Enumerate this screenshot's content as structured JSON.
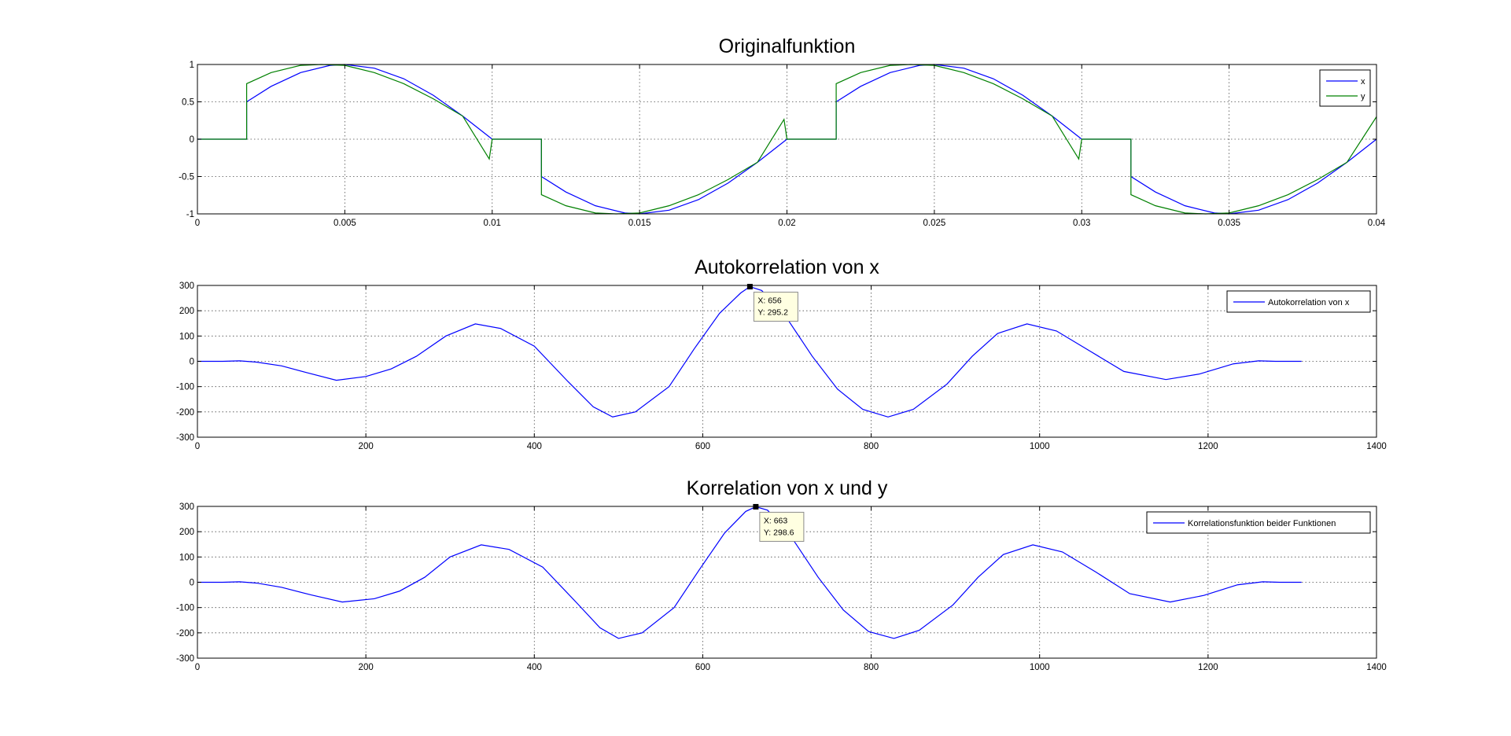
{
  "chart_data": [
    {
      "type": "line",
      "title": "Originalfunktion",
      "xlim": [
        0,
        0.04
      ],
      "ylim": [
        -1,
        1
      ],
      "xticks": [
        0,
        0.005,
        0.01,
        0.015,
        0.02,
        0.025,
        0.03,
        0.035,
        0.04
      ],
      "xtick_labels": [
        "0",
        "0.005",
        "0.01",
        "0.015",
        "0.02",
        "0.025",
        "0.03",
        "0.035",
        "0.04"
      ],
      "yticks": [
        -1,
        -0.5,
        0,
        0.5,
        1
      ],
      "ytick_labels": [
        "-1",
        "-0.5",
        "0",
        "0.5",
        "1"
      ],
      "grid": true,
      "legend_position": "top-right",
      "series": [
        {
          "name": "x",
          "color": "#0000ff",
          "points": [
            [
              0,
              0
            ],
            [
              0.00167,
              0
            ],
            [
              0.00167,
              0.5
            ],
            [
              0.0025,
              0.707
            ],
            [
              0.0035,
              0.891
            ],
            [
              0.0045,
              0.988
            ],
            [
              0.005,
              1
            ],
            [
              0.006,
              0.951
            ],
            [
              0.007,
              0.809
            ],
            [
              0.008,
              0.588
            ],
            [
              0.009,
              0.309
            ],
            [
              0.01,
              0
            ],
            [
              0.01167,
              0
            ],
            [
              0.01167,
              -0.5
            ],
            [
              0.0125,
              -0.707
            ],
            [
              0.0135,
              -0.891
            ],
            [
              0.0145,
              -0.988
            ],
            [
              0.015,
              -1
            ],
            [
              0.016,
              -0.951
            ],
            [
              0.017,
              -0.809
            ],
            [
              0.018,
              -0.588
            ],
            [
              0.019,
              -0.309
            ],
            [
              0.02,
              0
            ],
            [
              0.02167,
              0
            ],
            [
              0.02167,
              0.5
            ],
            [
              0.0225,
              0.707
            ],
            [
              0.0235,
              0.891
            ],
            [
              0.0245,
              0.988
            ],
            [
              0.025,
              1
            ],
            [
              0.026,
              0.951
            ],
            [
              0.027,
              0.809
            ],
            [
              0.028,
              0.588
            ],
            [
              0.029,
              0.309
            ],
            [
              0.03,
              0
            ],
            [
              0.03167,
              0
            ],
            [
              0.03167,
              -0.5
            ],
            [
              0.0325,
              -0.707
            ],
            [
              0.0335,
              -0.891
            ],
            [
              0.0345,
              -0.988
            ],
            [
              0.035,
              -1
            ],
            [
              0.036,
              -0.951
            ],
            [
              0.037,
              -0.809
            ],
            [
              0.038,
              -0.588
            ],
            [
              0.039,
              -0.309
            ],
            [
              0.04,
              0
            ]
          ]
        },
        {
          "name": "y",
          "color": "#008000",
          "points": [
            [
              0,
              0
            ],
            [
              0.00167,
              0
            ],
            [
              0.00167,
              0.743
            ],
            [
              0.0025,
              0.891
            ],
            [
              0.0035,
              0.988
            ],
            [
              0.0042,
              1
            ],
            [
              0.005,
              0.988
            ],
            [
              0.006,
              0.891
            ],
            [
              0.007,
              0.743
            ],
            [
              0.008,
              0.541
            ],
            [
              0.009,
              0.309
            ],
            [
              0.0099,
              -0.265
            ],
            [
              0.01,
              0
            ],
            [
              0.01167,
              0
            ],
            [
              0.01167,
              -0.743
            ],
            [
              0.0125,
              -0.891
            ],
            [
              0.0135,
              -0.988
            ],
            [
              0.0142,
              -1
            ],
            [
              0.015,
              -0.988
            ],
            [
              0.016,
              -0.891
            ],
            [
              0.017,
              -0.743
            ],
            [
              0.018,
              -0.541
            ],
            [
              0.019,
              -0.309
            ],
            [
              0.0199,
              0.265
            ],
            [
              0.02,
              0
            ],
            [
              0.02167,
              0
            ],
            [
              0.02167,
              0.743
            ],
            [
              0.0225,
              0.891
            ],
            [
              0.0235,
              0.988
            ],
            [
              0.0242,
              1
            ],
            [
              0.025,
              0.988
            ],
            [
              0.026,
              0.891
            ],
            [
              0.027,
              0.743
            ],
            [
              0.028,
              0.541
            ],
            [
              0.029,
              0.309
            ],
            [
              0.0299,
              -0.265
            ],
            [
              0.03,
              0
            ],
            [
              0.03167,
              0
            ],
            [
              0.03167,
              -0.743
            ],
            [
              0.0325,
              -0.891
            ],
            [
              0.0335,
              -0.988
            ],
            [
              0.0342,
              -1
            ],
            [
              0.035,
              -0.988
            ],
            [
              0.036,
              -0.891
            ],
            [
              0.037,
              -0.743
            ],
            [
              0.038,
              -0.541
            ],
            [
              0.039,
              -0.309
            ],
            [
              0.04,
              0.3
            ]
          ]
        }
      ]
    },
    {
      "type": "line",
      "title": "Autokorrelation von x",
      "xlim": [
        0,
        1400
      ],
      "ylim": [
        -300,
        300
      ],
      "xticks": [
        0,
        200,
        400,
        600,
        800,
        1000,
        1200,
        1400
      ],
      "xtick_labels": [
        "0",
        "200",
        "400",
        "600",
        "800",
        "1000",
        "1200",
        "1400"
      ],
      "yticks": [
        -300,
        -200,
        -100,
        0,
        100,
        200,
        300
      ],
      "ytick_labels": [
        "-300",
        "-200",
        "-100",
        "0",
        "100",
        "200",
        "300"
      ],
      "grid": true,
      "legend_position": "top-right",
      "series": [
        {
          "name": "Autokorrelation von x",
          "color": "#0000ff",
          "points": [
            [
              1,
              0
            ],
            [
              30,
              0
            ],
            [
              50,
              2
            ],
            [
              70,
              -3
            ],
            [
              100,
              -18
            ],
            [
              130,
              -45
            ],
            [
              165,
              -75
            ],
            [
              200,
              -60
            ],
            [
              230,
              -30
            ],
            [
              260,
              20
            ],
            [
              295,
              100
            ],
            [
              330,
              148
            ],
            [
              360,
              130
            ],
            [
              400,
              60
            ],
            [
              440,
              -80
            ],
            [
              470,
              -180
            ],
            [
              493,
              -220
            ],
            [
              520,
              -200
            ],
            [
              560,
              -100
            ],
            [
              590,
              50
            ],
            [
              620,
              190
            ],
            [
              645,
              270
            ],
            [
              656,
              295.2
            ],
            [
              670,
              280
            ],
            [
              700,
              170
            ],
            [
              730,
              20
            ],
            [
              760,
              -110
            ],
            [
              790,
              -190
            ],
            [
              820,
              -220
            ],
            [
              850,
              -190
            ],
            [
              890,
              -90
            ],
            [
              920,
              20
            ],
            [
              950,
              110
            ],
            [
              985,
              148
            ],
            [
              1020,
              120
            ],
            [
              1060,
              40
            ],
            [
              1100,
              -40
            ],
            [
              1150,
              -72
            ],
            [
              1190,
              -50
            ],
            [
              1230,
              -10
            ],
            [
              1260,
              2
            ],
            [
              1280,
              0
            ],
            [
              1311,
              0
            ]
          ]
        }
      ],
      "datatip": {
        "x_label": "X: 656",
        "y_label": "Y: 295.2",
        "x": 656,
        "y": 295.2
      }
    },
    {
      "type": "line",
      "title": "Korrelation von x und y",
      "xlim": [
        0,
        1400
      ],
      "ylim": [
        -300,
        300
      ],
      "xticks": [
        0,
        200,
        400,
        600,
        800,
        1000,
        1200,
        1400
      ],
      "xtick_labels": [
        "0",
        "200",
        "400",
        "600",
        "800",
        "1000",
        "1200",
        "1400"
      ],
      "yticks": [
        -300,
        -200,
        -100,
        0,
        100,
        200,
        300
      ],
      "ytick_labels": [
        "-300",
        "-200",
        "-100",
        "0",
        "100",
        "200",
        "300"
      ],
      "grid": true,
      "legend_position": "top-right",
      "series": [
        {
          "name": "Korrelationsfunktion beider Funktionen",
          "color": "#0000ff",
          "points": [
            [
              1,
              0
            ],
            [
              30,
              0
            ],
            [
              50,
              2
            ],
            [
              70,
              -3
            ],
            [
              100,
              -20
            ],
            [
              135,
              -50
            ],
            [
              172,
              -78
            ],
            [
              210,
              -65
            ],
            [
              240,
              -35
            ],
            [
              270,
              20
            ],
            [
              300,
              100
            ],
            [
              337,
              148
            ],
            [
              370,
              130
            ],
            [
              410,
              60
            ],
            [
              450,
              -80
            ],
            [
              478,
              -180
            ],
            [
              500,
              -222
            ],
            [
              528,
              -200
            ],
            [
              566,
              -100
            ],
            [
              596,
              50
            ],
            [
              626,
              195
            ],
            [
              651,
              280
            ],
            [
              663,
              298.6
            ],
            [
              677,
              285
            ],
            [
              707,
              170
            ],
            [
              737,
              20
            ],
            [
              767,
              -110
            ],
            [
              797,
              -195
            ],
            [
              827,
              -222
            ],
            [
              857,
              -190
            ],
            [
              897,
              -90
            ],
            [
              927,
              20
            ],
            [
              957,
              110
            ],
            [
              992,
              148
            ],
            [
              1027,
              120
            ],
            [
              1067,
              40
            ],
            [
              1107,
              -45
            ],
            [
              1155,
              -78
            ],
            [
              1195,
              -52
            ],
            [
              1235,
              -10
            ],
            [
              1265,
              2
            ],
            [
              1285,
              0
            ],
            [
              1311,
              0
            ]
          ]
        }
      ],
      "datatip": {
        "x_label": "X: 663",
        "y_label": "Y: 298.6",
        "x": 663,
        "y": 298.6
      }
    }
  ]
}
